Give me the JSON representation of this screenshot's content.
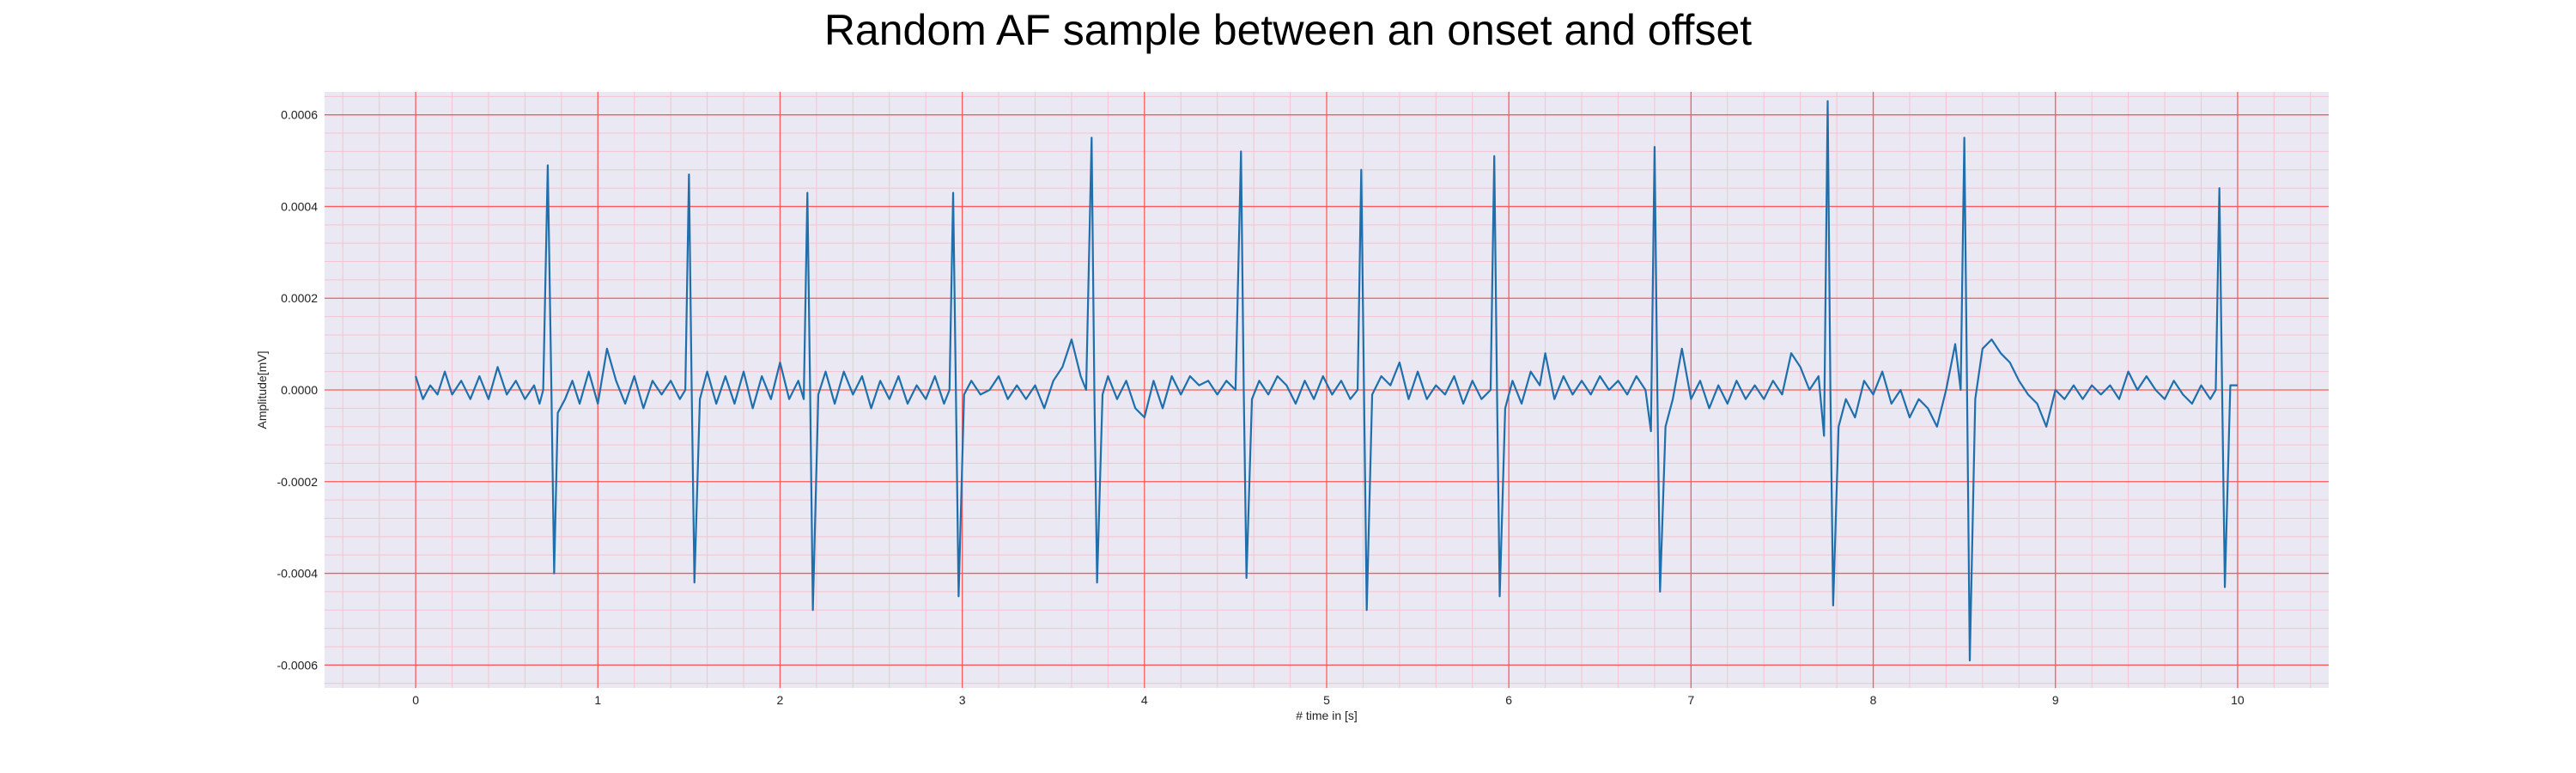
{
  "chart_data": {
    "type": "line",
    "title": "Random AF sample between an onset and offset",
    "xlabel": "# time in [s]",
    "ylabel": "Amplitude[mV]",
    "xlim": [
      -0.5,
      10.5
    ],
    "ylim": [
      -0.00065,
      0.00065
    ],
    "x_ticks": [
      0,
      1,
      2,
      3,
      4,
      5,
      6,
      7,
      8,
      9,
      10
    ],
    "x_tick_labels": [
      "0",
      "1",
      "2",
      "3",
      "4",
      "5",
      "6",
      "7",
      "8",
      "9",
      "10"
    ],
    "y_ticks": [
      -0.0006,
      -0.0004,
      -0.0002,
      0.0,
      0.0002,
      0.0004,
      0.0006
    ],
    "y_tick_labels": [
      "-0.0006",
      "-0.0004",
      "-0.0002",
      "0.0000",
      "0.0002",
      "0.0004",
      "0.0006"
    ],
    "grid": true,
    "legend": "none",
    "colors": {
      "line": "#1f6fad",
      "plot_background": "#eae8f2",
      "major_grid": "#ff5a5a",
      "minor_grid": "#f4c4cf"
    },
    "series": [
      {
        "points": [
          [
            0.0,
            3e-05
          ],
          [
            0.04,
            -2e-05
          ],
          [
            0.08,
            1e-05
          ],
          [
            0.12,
            -1e-05
          ],
          [
            0.16,
            4e-05
          ],
          [
            0.2,
            -1e-05
          ],
          [
            0.25,
            2e-05
          ],
          [
            0.3,
            -2e-05
          ],
          [
            0.35,
            3e-05
          ],
          [
            0.4,
            -2e-05
          ],
          [
            0.45,
            5e-05
          ],
          [
            0.5,
            -1e-05
          ],
          [
            0.55,
            2e-05
          ],
          [
            0.6,
            -2e-05
          ],
          [
            0.65,
            1e-05
          ],
          [
            0.68,
            -3e-05
          ],
          [
            0.7,
            0.0
          ],
          [
            0.725,
            0.00049
          ],
          [
            0.745,
            0.0
          ],
          [
            0.76,
            -0.0004
          ],
          [
            0.78,
            -5e-05
          ],
          [
            0.82,
            -2e-05
          ],
          [
            0.86,
            2e-05
          ],
          [
            0.9,
            -3e-05
          ],
          [
            0.95,
            4e-05
          ],
          [
            1.0,
            -3e-05
          ],
          [
            1.05,
            9e-05
          ],
          [
            1.1,
            2e-05
          ],
          [
            1.15,
            -3e-05
          ],
          [
            1.2,
            3e-05
          ],
          [
            1.25,
            -4e-05
          ],
          [
            1.3,
            2e-05
          ],
          [
            1.35,
            -1e-05
          ],
          [
            1.4,
            2e-05
          ],
          [
            1.45,
            -2e-05
          ],
          [
            1.48,
            0.0
          ],
          [
            1.5,
            0.00047
          ],
          [
            1.515,
            0.0
          ],
          [
            1.53,
            -0.00042
          ],
          [
            1.56,
            -2e-05
          ],
          [
            1.6,
            4e-05
          ],
          [
            1.65,
            -3e-05
          ],
          [
            1.7,
            3e-05
          ],
          [
            1.75,
            -3e-05
          ],
          [
            1.8,
            4e-05
          ],
          [
            1.85,
            -4e-05
          ],
          [
            1.9,
            3e-05
          ],
          [
            1.95,
            -2e-05
          ],
          [
            2.0,
            6e-05
          ],
          [
            2.05,
            -2e-05
          ],
          [
            2.1,
            2e-05
          ],
          [
            2.13,
            -2e-05
          ],
          [
            2.15,
            0.00043
          ],
          [
            2.165,
            0.0
          ],
          [
            2.18,
            -0.00048
          ],
          [
            2.21,
            -1e-05
          ],
          [
            2.25,
            4e-05
          ],
          [
            2.3,
            -3e-05
          ],
          [
            2.35,
            4e-05
          ],
          [
            2.4,
            -1e-05
          ],
          [
            2.45,
            3e-05
          ],
          [
            2.5,
            -4e-05
          ],
          [
            2.55,
            2e-05
          ],
          [
            2.6,
            -2e-05
          ],
          [
            2.65,
            3e-05
          ],
          [
            2.7,
            -3e-05
          ],
          [
            2.75,
            1e-05
          ],
          [
            2.8,
            -2e-05
          ],
          [
            2.85,
            3e-05
          ],
          [
            2.9,
            -3e-05
          ],
          [
            2.93,
            0.0
          ],
          [
            2.95,
            0.00043
          ],
          [
            2.965,
            0.0
          ],
          [
            2.98,
            -0.00045
          ],
          [
            3.01,
            -1e-05
          ],
          [
            3.05,
            2e-05
          ],
          [
            3.1,
            -1e-05
          ],
          [
            3.15,
            0.0
          ],
          [
            3.2,
            3e-05
          ],
          [
            3.25,
            -2e-05
          ],
          [
            3.3,
            1e-05
          ],
          [
            3.35,
            -2e-05
          ],
          [
            3.4,
            1e-05
          ],
          [
            3.45,
            -4e-05
          ],
          [
            3.5,
            2e-05
          ],
          [
            3.55,
            5e-05
          ],
          [
            3.6,
            0.00011
          ],
          [
            3.65,
            3e-05
          ],
          [
            3.68,
            0.0
          ],
          [
            3.71,
            0.00055
          ],
          [
            3.725,
            0.0
          ],
          [
            3.74,
            -0.00042
          ],
          [
            3.77,
            -1e-05
          ],
          [
            3.8,
            3e-05
          ],
          [
            3.85,
            -2e-05
          ],
          [
            3.9,
            2e-05
          ],
          [
            3.95,
            -4e-05
          ],
          [
            4.0,
            -6e-05
          ],
          [
            4.05,
            2e-05
          ],
          [
            4.1,
            -4e-05
          ],
          [
            4.15,
            3e-05
          ],
          [
            4.2,
            -1e-05
          ],
          [
            4.25,
            3e-05
          ],
          [
            4.3,
            1e-05
          ],
          [
            4.35,
            2e-05
          ],
          [
            4.4,
            -1e-05
          ],
          [
            4.45,
            2e-05
          ],
          [
            4.5,
            0.0
          ],
          [
            4.53,
            0.00052
          ],
          [
            4.545,
            0.0
          ],
          [
            4.56,
            -0.00041
          ],
          [
            4.59,
            -2e-05
          ],
          [
            4.63,
            2e-05
          ],
          [
            4.68,
            -1e-05
          ],
          [
            4.73,
            3e-05
          ],
          [
            4.78,
            1e-05
          ],
          [
            4.83,
            -3e-05
          ],
          [
            4.88,
            2e-05
          ],
          [
            4.93,
            -2e-05
          ],
          [
            4.98,
            3e-05
          ],
          [
            5.03,
            -1e-05
          ],
          [
            5.08,
            2e-05
          ],
          [
            5.13,
            -2e-05
          ],
          [
            5.17,
            0.0
          ],
          [
            5.19,
            0.00048
          ],
          [
            5.205,
            0.0
          ],
          [
            5.22,
            -0.00048
          ],
          [
            5.25,
            -1e-05
          ],
          [
            5.3,
            3e-05
          ],
          [
            5.35,
            1e-05
          ],
          [
            5.4,
            6e-05
          ],
          [
            5.45,
            -2e-05
          ],
          [
            5.5,
            4e-05
          ],
          [
            5.55,
            -2e-05
          ],
          [
            5.6,
            1e-05
          ],
          [
            5.65,
            -1e-05
          ],
          [
            5.7,
            3e-05
          ],
          [
            5.75,
            -3e-05
          ],
          [
            5.8,
            2e-05
          ],
          [
            5.85,
            -2e-05
          ],
          [
            5.9,
            0.0
          ],
          [
            5.92,
            0.00051
          ],
          [
            5.935,
            0.0
          ],
          [
            5.95,
            -0.00045
          ],
          [
            5.98,
            -4e-05
          ],
          [
            6.02,
            2e-05
          ],
          [
            6.07,
            -3e-05
          ],
          [
            6.12,
            4e-05
          ],
          [
            6.17,
            1e-05
          ],
          [
            6.2,
            8e-05
          ],
          [
            6.25,
            -2e-05
          ],
          [
            6.3,
            3e-05
          ],
          [
            6.35,
            -1e-05
          ],
          [
            6.4,
            2e-05
          ],
          [
            6.45,
            -1e-05
          ],
          [
            6.5,
            3e-05
          ],
          [
            6.55,
            0.0
          ],
          [
            6.6,
            2e-05
          ],
          [
            6.65,
            -1e-05
          ],
          [
            6.7,
            3e-05
          ],
          [
            6.75,
            0.0
          ],
          [
            6.78,
            -9e-05
          ],
          [
            6.8,
            0.00053
          ],
          [
            6.815,
            0.0
          ],
          [
            6.83,
            -0.00044
          ],
          [
            6.86,
            -8e-05
          ],
          [
            6.9,
            -2e-05
          ],
          [
            6.95,
            9e-05
          ],
          [
            7.0,
            -2e-05
          ],
          [
            7.05,
            2e-05
          ],
          [
            7.1,
            -4e-05
          ],
          [
            7.15,
            1e-05
          ],
          [
            7.2,
            -3e-05
          ],
          [
            7.25,
            2e-05
          ],
          [
            7.3,
            -2e-05
          ],
          [
            7.35,
            1e-05
          ],
          [
            7.4,
            -2e-05
          ],
          [
            7.45,
            2e-05
          ],
          [
            7.5,
            -1e-05
          ],
          [
            7.55,
            8e-05
          ],
          [
            7.6,
            5e-05
          ],
          [
            7.65,
            0.0
          ],
          [
            7.7,
            3e-05
          ],
          [
            7.73,
            -0.0001
          ],
          [
            7.75,
            0.00063
          ],
          [
            7.765,
            0.0
          ],
          [
            7.78,
            -0.00047
          ],
          [
            7.81,
            -8e-05
          ],
          [
            7.85,
            -2e-05
          ],
          [
            7.9,
            -6e-05
          ],
          [
            7.95,
            2e-05
          ],
          [
            8.0,
            -1e-05
          ],
          [
            8.05,
            4e-05
          ],
          [
            8.1,
            -3e-05
          ],
          [
            8.15,
            0.0
          ],
          [
            8.2,
            -6e-05
          ],
          [
            8.25,
            -2e-05
          ],
          [
            8.3,
            -4e-05
          ],
          [
            8.35,
            -8e-05
          ],
          [
            8.4,
            0.0
          ],
          [
            8.45,
            0.0001
          ],
          [
            8.48,
            0.0
          ],
          [
            8.5,
            0.00055
          ],
          [
            8.515,
            0.0
          ],
          [
            8.53,
            -0.00059
          ],
          [
            8.56,
            -2e-05
          ],
          [
            8.6,
            9e-05
          ],
          [
            8.65,
            0.00011
          ],
          [
            8.7,
            8e-05
          ],
          [
            8.75,
            6e-05
          ],
          [
            8.8,
            2e-05
          ],
          [
            8.85,
            -1e-05
          ],
          [
            8.9,
            -3e-05
          ],
          [
            8.95,
            -8e-05
          ],
          [
            9.0,
            0.0
          ],
          [
            9.05,
            -2e-05
          ],
          [
            9.1,
            1e-05
          ],
          [
            9.15,
            -2e-05
          ],
          [
            9.2,
            1e-05
          ],
          [
            9.25,
            -1e-05
          ],
          [
            9.3,
            1e-05
          ],
          [
            9.35,
            -2e-05
          ],
          [
            9.4,
            4e-05
          ],
          [
            9.45,
            0.0
          ],
          [
            9.5,
            3e-05
          ],
          [
            9.55,
            0.0
          ],
          [
            9.6,
            -2e-05
          ],
          [
            9.65,
            2e-05
          ],
          [
            9.7,
            -1e-05
          ],
          [
            9.75,
            -3e-05
          ],
          [
            9.8,
            1e-05
          ],
          [
            9.85,
            -2e-05
          ],
          [
            9.88,
            0.0
          ],
          [
            9.9,
            0.00044
          ],
          [
            9.915,
            0.0
          ],
          [
            9.93,
            -0.00043
          ],
          [
            9.96,
            1e-05
          ],
          [
            10.0,
            1e-05
          ]
        ]
      }
    ]
  }
}
